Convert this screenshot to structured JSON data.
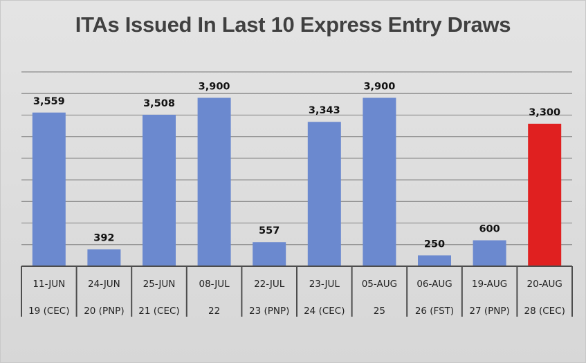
{
  "title": "ITAs Issued In Last 10 Express Entry Draws",
  "chart_data": {
    "type": "bar",
    "title": "ITAs Issued In Last 10 Express Entry Draws",
    "xlabel": "",
    "ylabel": "",
    "ylim": [
      0,
      4500
    ],
    "grid": true,
    "legend": "none",
    "categories": [
      "11-JUN",
      "24-JUN",
      "25-JUN",
      "08-JUL",
      "22-JUL",
      "23-JUL",
      "05-AUG",
      "06-AUG",
      "19-AUG",
      "20-AUG"
    ],
    "sub_categories": [
      "19 (CEC)",
      "20 (PNP)",
      "21 (CEC)",
      "22",
      "23 (PNP)",
      "24 (CEC)",
      "25",
      "26 (FST)",
      "27 (PNP)",
      "28 (CEC)"
    ],
    "values": [
      3559,
      392,
      3508,
      3900,
      557,
      3343,
      3900,
      250,
      600,
      3300
    ],
    "value_labels": [
      "3,559",
      "392",
      "3,508",
      "3,900",
      "557",
      "3,343",
      "3,900",
      "250",
      "600",
      "3,300"
    ],
    "bar_colors": [
      "#6b89cf",
      "#6b89cf",
      "#6b89cf",
      "#6b89cf",
      "#6b89cf",
      "#6b89cf",
      "#6b89cf",
      "#6b89cf",
      "#6b89cf",
      "#e02020"
    ]
  }
}
